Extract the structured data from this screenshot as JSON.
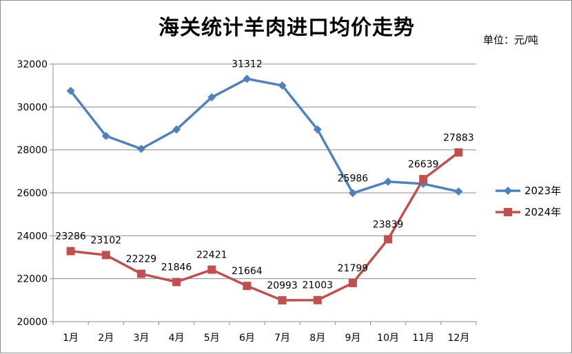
{
  "chart_data": {
    "type": "line",
    "title": "海关统计羊肉进口均价走势",
    "unit_note": "单位：元/吨",
    "categories": [
      "1月",
      "2月",
      "3月",
      "4月",
      "5月",
      "6月",
      "7月",
      "8月",
      "9月",
      "10月",
      "11月",
      "12月"
    ],
    "ylim": [
      20000,
      32000
    ],
    "y_ticks": [
      20000,
      22000,
      24000,
      26000,
      28000,
      30000,
      32000
    ],
    "grid": true,
    "legend_position": "right",
    "series": [
      {
        "name": "2023年",
        "color": "#4f81bd",
        "marker": "diamond",
        "values": [
          30750,
          28650,
          28050,
          28950,
          30450,
          31312,
          31000,
          28950,
          25986,
          26520,
          26420,
          26060
        ],
        "labels": [
          "",
          "",
          "",
          "",
          "",
          "31312",
          "",
          "",
          "25986",
          "",
          "",
          ""
        ]
      },
      {
        "name": "2024年",
        "color": "#c0504d",
        "marker": "square",
        "values": [
          23286,
          23102,
          22229,
          21846,
          22421,
          21664,
          20993,
          21003,
          21799,
          23839,
          26639,
          27883
        ],
        "labels": [
          "23286",
          "23102",
          "22229",
          "21846",
          "22421",
          "21664",
          "20993",
          "21003",
          "21799",
          "23839",
          "26639",
          "27883"
        ]
      }
    ]
  }
}
